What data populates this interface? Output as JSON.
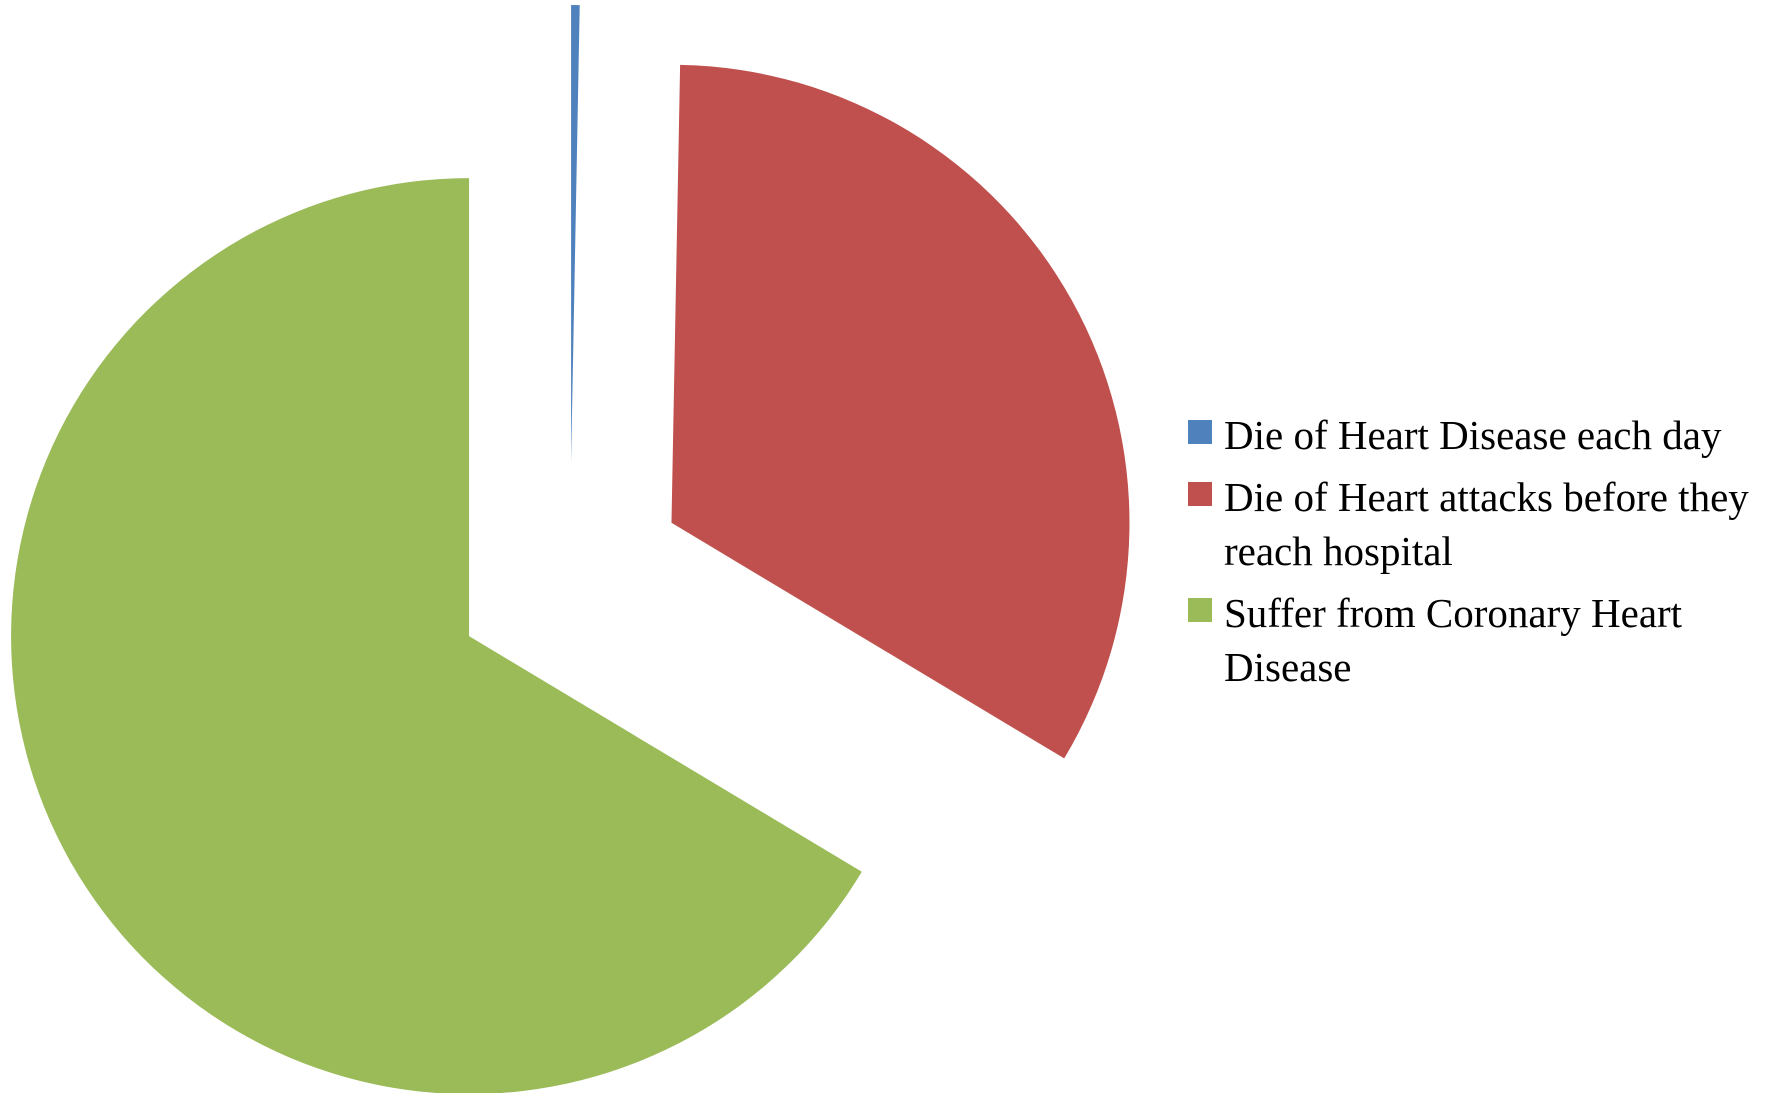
{
  "chart_data": {
    "type": "pie",
    "categories": [
      "Die of Heart Disease each day",
      "Die of Heart attacks before they reach hospital",
      "Suffer from Coronary Heart Disease"
    ],
    "values": [
      0.3,
      33.3,
      66.4
    ],
    "colors": [
      "#4f81bd",
      "#c0504d",
      "#9bbb59"
    ],
    "exploded": true,
    "legend": "right"
  }
}
